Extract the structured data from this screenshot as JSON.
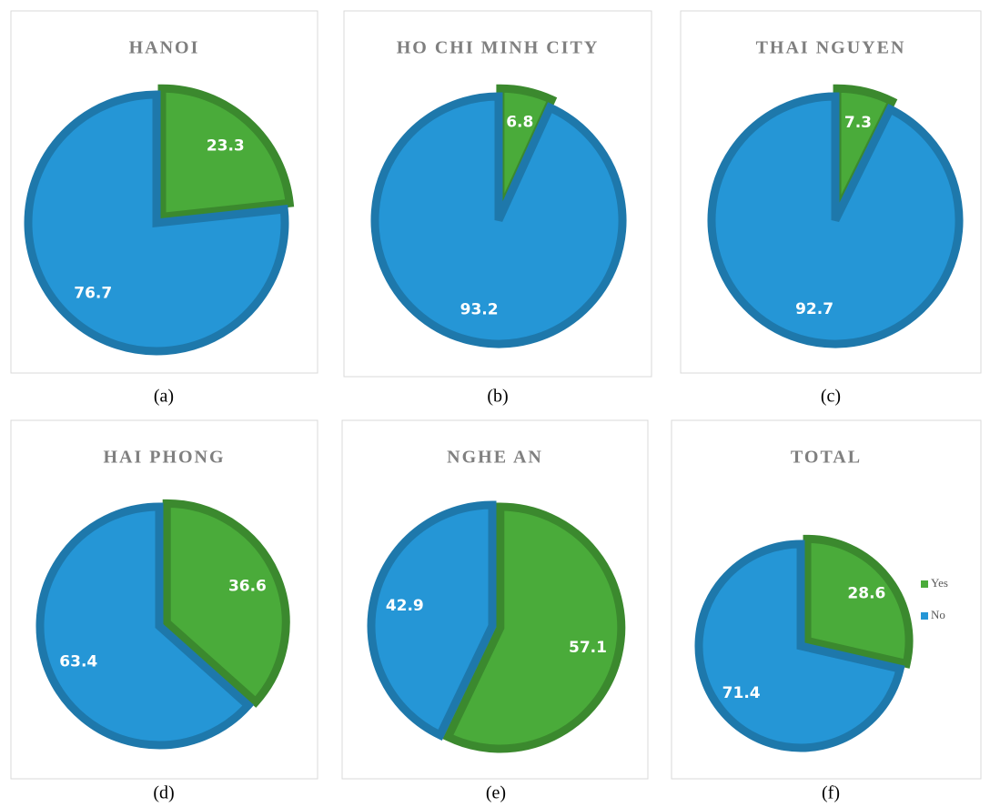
{
  "chart_data": [
    {
      "type": "pie",
      "title": "HANOI",
      "values": [
        23.3,
        76.7
      ],
      "colors": [
        "#4aab3a",
        "#2596d6"
      ],
      "label": "(a)"
    },
    {
      "type": "pie",
      "title": "HO CHI MINH CITY",
      "values": [
        6.8,
        93.2
      ],
      "colors": [
        "#4aab3a",
        "#2596d6"
      ],
      "label": "(b)"
    },
    {
      "type": "pie",
      "title": "THAI NGUYEN",
      "values": [
        7.3,
        92.7
      ],
      "colors": [
        "#4aab3a",
        "#2596d6"
      ],
      "label": "(c)"
    },
    {
      "type": "pie",
      "title": "HAI PHONG",
      "values": [
        36.6,
        63.4
      ],
      "colors": [
        "#4aab3a",
        "#2596d6"
      ],
      "label": "(d)"
    },
    {
      "type": "pie",
      "title": "NGHE AN",
      "values": [
        57.1,
        42.9
      ],
      "colors": [
        "#4aab3a",
        "#2596d6"
      ],
      "label": "(e)"
    },
    {
      "type": "pie",
      "title": "TOTAL",
      "values": [
        28.6,
        71.4
      ],
      "colors": [
        "#4aab3a",
        "#2596d6"
      ],
      "label": "(f)",
      "categories": [
        "Yes",
        "No"
      ],
      "legend": "right"
    }
  ]
}
